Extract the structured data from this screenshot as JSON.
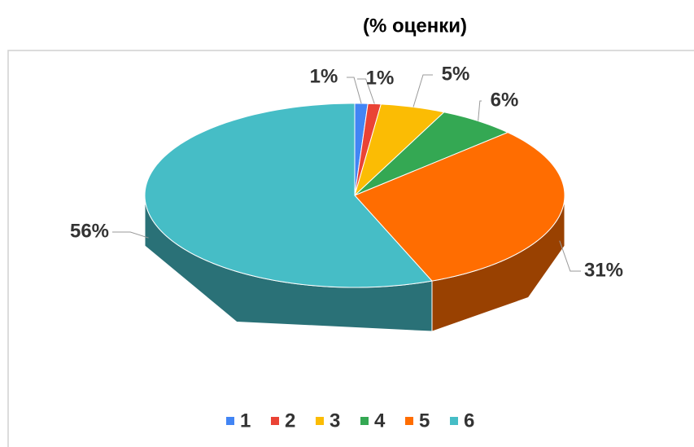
{
  "chart_data": {
    "type": "pie",
    "title": "(% оценки)",
    "categories": [
      "1",
      "2",
      "3",
      "4",
      "5",
      "6"
    ],
    "values": [
      1,
      1,
      5,
      6,
      31,
      56
    ],
    "value_labels": [
      "1%",
      "1%",
      "5%",
      "6%",
      "31%",
      "56%"
    ],
    "colors": [
      "#4285f4",
      "#ea4335",
      "#fbbc04",
      "#34a853",
      "#ff6d01",
      "#46bdc6"
    ],
    "legend": "bottom"
  }
}
